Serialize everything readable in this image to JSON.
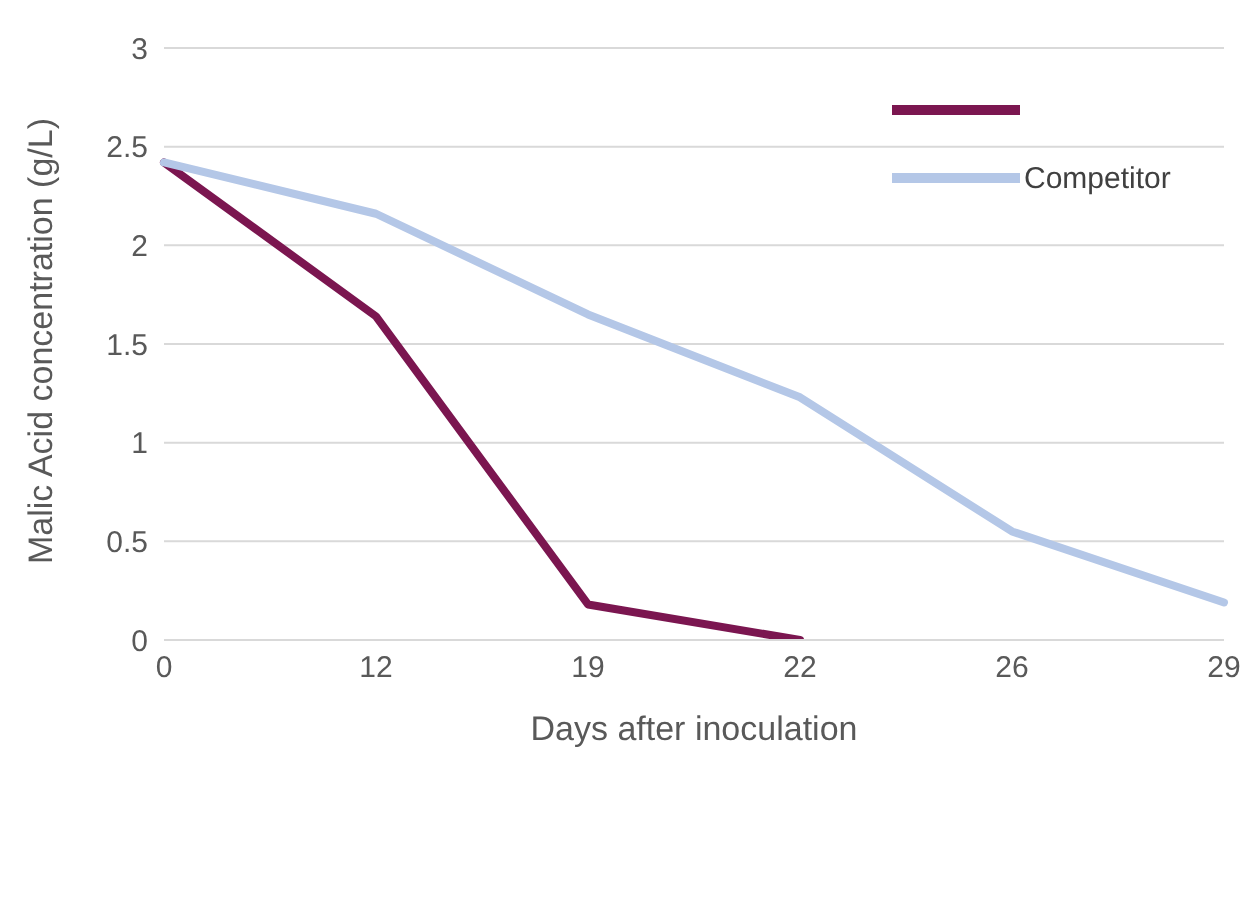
{
  "chart_data": {
    "type": "line",
    "xlabel": "Days after inoculation",
    "ylabel": "Malic Acid concentration (g/L)",
    "categories": [
      "0",
      "12",
      "19",
      "22",
      "26",
      "29"
    ],
    "series": [
      {
        "color": "#7b1650",
        "values": [
          2.42,
          1.64,
          0.18,
          0.0,
          null,
          null
        ]
      },
      {
        "name": "Competitor",
        "color": "#b4c7e7",
        "values": [
          2.42,
          2.16,
          1.65,
          1.23,
          0.55,
          0.19
        ]
      }
    ],
    "ylim": [
      0,
      3
    ],
    "yticks": [
      0,
      0.5,
      1,
      1.5,
      2,
      2.5,
      3
    ],
    "grid": "y",
    "legend": "top right",
    "marker": "none",
    "line_style": "solid"
  }
}
